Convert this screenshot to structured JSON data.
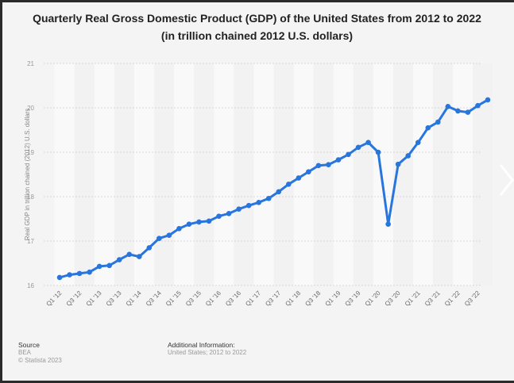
{
  "title_line1": "Quarterly Real Gross Domestic Product (GDP) of the United States from 2012 to 2022",
  "title_line2": "(in trillion chained 2012 U.S. dollars)",
  "footer": {
    "source_label": "Source",
    "source_value": "BEA",
    "copyright": "© Statista 2023",
    "additional_label": "Additional Information:",
    "additional_value": "United States; 2012 to 2022"
  },
  "accent_color": "#2876dd",
  "chart_data": {
    "type": "line",
    "title": "Quarterly Real Gross Domestic Product (GDP) of the United States from 2012 to 2022 (in trillion chained 2012 U.S. dollars)",
    "xlabel": "",
    "ylabel": "Real GDP in trillion chained (2012) U.S. dollars",
    "ylim": [
      16,
      21
    ],
    "yticks": [
      16,
      17,
      18,
      19,
      20,
      21
    ],
    "grid": true,
    "x": [
      "Q1 '12",
      "Q2 '12",
      "Q3 '12",
      "Q4 '12",
      "Q1 '13",
      "Q2 '13",
      "Q3 '13",
      "Q4 '13",
      "Q1 '14",
      "Q2 '14",
      "Q3 '14",
      "Q4 '14",
      "Q1 '15",
      "Q2 '15",
      "Q3 '15",
      "Q4 '15",
      "Q1 '16",
      "Q2 '16",
      "Q3 '16",
      "Q4 '16",
      "Q1 '17",
      "Q2 '17",
      "Q3 '17",
      "Q4 '17",
      "Q1 '18",
      "Q2 '18",
      "Q3 '18",
      "Q4 '18",
      "Q1 '19",
      "Q2 '19",
      "Q3 '19",
      "Q4 '19",
      "Q1 '20",
      "Q2 '20",
      "Q3 '20",
      "Q4 '20",
      "Q1 '21",
      "Q2 '21",
      "Q3 '21",
      "Q4 '21",
      "Q1 '22",
      "Q2 '22",
      "Q3 '22",
      "Q4 '22"
    ],
    "xtick_labels_shown": [
      "Q1 '12",
      "Q3 '12",
      "Q1 '13",
      "Q3 '13",
      "Q1 '14",
      "Q3 '14",
      "Q1 '15",
      "Q3 '15",
      "Q1 '16",
      "Q3 '16",
      "Q1 '17",
      "Q3 '17",
      "Q1 '18",
      "Q3 '18",
      "Q1 '19",
      "Q3 '19",
      "Q1 '20",
      "Q3 '20",
      "Q1 '21",
      "Q3 '21",
      "Q1 '22",
      "Q3 '22"
    ],
    "series": [
      {
        "name": "Real GDP",
        "color": "#2876dd",
        "values": [
          16.18,
          16.24,
          16.27,
          16.3,
          16.43,
          16.45,
          16.58,
          16.7,
          16.65,
          16.85,
          17.06,
          17.13,
          17.28,
          17.38,
          17.43,
          17.45,
          17.56,
          17.62,
          17.72,
          17.8,
          17.87,
          17.96,
          18.11,
          18.28,
          18.42,
          18.56,
          18.7,
          18.72,
          18.83,
          18.95,
          19.11,
          19.22,
          19.0,
          17.38,
          18.73,
          18.92,
          19.22,
          19.55,
          19.68,
          20.03,
          19.93,
          19.9,
          20.05,
          20.18
        ]
      }
    ]
  }
}
